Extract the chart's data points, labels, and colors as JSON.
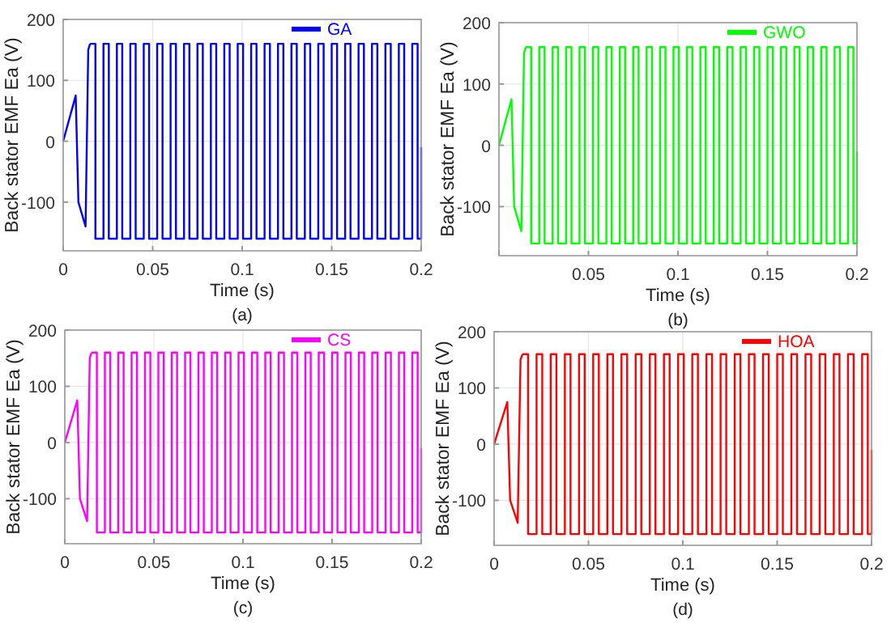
{
  "chart_data": [
    {
      "type": "line",
      "xlabel": "Time (s)",
      "ylabel": "Back stator EMF Ea (V)",
      "annotations": [
        "(a)"
      ],
      "xlim": [
        0,
        0.2
      ],
      "xticks": [
        0,
        0.05,
        0.1,
        0.15,
        0.2
      ],
      "ylim": [
        -180,
        200
      ],
      "yticks": [
        -100,
        0,
        100,
        200
      ],
      "grid": true,
      "legend": "top right",
      "series": [
        {
          "color": "#0000ff",
          "x": [
            0,
            0.007,
            0.0085,
            0.0125,
            0.014,
            0.015
          ],
          "values": [
            0,
            75,
            -100,
            -140,
            150,
            160
          ]
        },
        {
          "type": "step",
          "name": "GA",
          "color": "#0000ff",
          "x": [
            0.015,
            0.018,
            0.0225,
            0.0255,
            0.03,
            0.033,
            0.0375,
            0.0405,
            0.045,
            0.048,
            0.0525,
            0.0555,
            0.06,
            0.063,
            0.0675,
            0.0705,
            0.075,
            0.078,
            0.0825,
            0.0855,
            0.09,
            0.093,
            0.0975,
            0.1005,
            0.105,
            0.108,
            0.1125,
            0.1155,
            0.12,
            0.123,
            0.1275,
            0.1305,
            0.135,
            0.138,
            0.1425,
            0.1455,
            0.15,
            0.153,
            0.1575,
            0.1605,
            0.165,
            0.168,
            0.1725,
            0.1755,
            0.18,
            0.183,
            0.1875,
            0.1905,
            0.195,
            0.198,
            0.2
          ],
          "values": [
            160,
            -160,
            160,
            -160,
            160,
            -160,
            160,
            -160,
            160,
            -160,
            160,
            -160,
            160,
            -160,
            160,
            -160,
            160,
            -160,
            160,
            -160,
            160,
            -160,
            160,
            -160,
            160,
            -160,
            160,
            -160,
            160,
            -160,
            160,
            -160,
            160,
            -160,
            160,
            -160,
            160,
            -160,
            160,
            -160,
            160,
            -160,
            160,
            -160,
            160,
            -160,
            160,
            -160,
            160,
            -160,
            -10
          ]
        }
      ]
    },
    {
      "type": "line",
      "xlabel": "Time (s)",
      "ylabel": "Back stator EMF Ea (V)",
      "annotations": [
        "(b)"
      ],
      "xlim": [
        0,
        0.2
      ],
      "xticks": [
        {
          "value": 0,
          "label": null
        },
        0.05,
        0.1,
        0.15,
        0.2
      ],
      "ylim": [
        -180,
        200
      ],
      "yticks": [
        -100,
        0,
        100,
        200
      ],
      "grid": true,
      "legend": "top right",
      "series": [
        {
          "color": "#00ff00",
          "x": [
            0,
            0.007,
            0.0085,
            0.0125,
            0.014,
            0.015
          ],
          "values": [
            0,
            75,
            -100,
            -140,
            150,
            160
          ]
        },
        {
          "type": "step",
          "name": "GWO",
          "color": "#00ff00",
          "x": [
            0.015,
            0.018,
            0.0225,
            0.0255,
            0.03,
            0.033,
            0.0375,
            0.0405,
            0.045,
            0.048,
            0.0525,
            0.0555,
            0.06,
            0.063,
            0.0675,
            0.0705,
            0.075,
            0.078,
            0.0825,
            0.0855,
            0.09,
            0.093,
            0.0975,
            0.1005,
            0.105,
            0.108,
            0.1125,
            0.1155,
            0.12,
            0.123,
            0.1275,
            0.1305,
            0.135,
            0.138,
            0.1425,
            0.1455,
            0.15,
            0.153,
            0.1575,
            0.1605,
            0.165,
            0.168,
            0.1725,
            0.1755,
            0.18,
            0.183,
            0.1875,
            0.1905,
            0.195,
            0.198,
            0.2
          ],
          "values": [
            160,
            -160,
            160,
            -160,
            160,
            -160,
            160,
            -160,
            160,
            -160,
            160,
            -160,
            160,
            -160,
            160,
            -160,
            160,
            -160,
            160,
            -160,
            160,
            -160,
            160,
            -160,
            160,
            -160,
            160,
            -160,
            160,
            -160,
            160,
            -160,
            160,
            -160,
            160,
            -160,
            160,
            -160,
            160,
            -160,
            160,
            -160,
            160,
            -160,
            160,
            -160,
            160,
            -160,
            160,
            -160,
            -10
          ]
        }
      ]
    },
    {
      "type": "line",
      "xlabel": "Time (s)",
      "ylabel": "Back stator EMF Ea (V)",
      "annotations": [
        "(c)"
      ],
      "xlim": [
        0,
        0.2
      ],
      "xticks": [
        0,
        0.05,
        0.1,
        0.15,
        0.2
      ],
      "ylim": [
        -180,
        200
      ],
      "yticks": [
        -100,
        0,
        100,
        200
      ],
      "grid": true,
      "legend": "top right",
      "series": [
        {
          "color": "#ff00ff",
          "x": [
            0,
            0.007,
            0.0085,
            0.0125,
            0.014,
            0.015
          ],
          "values": [
            0,
            75,
            -100,
            -140,
            150,
            160
          ]
        },
        {
          "type": "step",
          "name": "CS",
          "color": "#ff00ff",
          "x": [
            0.015,
            0.018,
            0.0225,
            0.0255,
            0.03,
            0.033,
            0.0375,
            0.0405,
            0.045,
            0.048,
            0.0525,
            0.0555,
            0.06,
            0.063,
            0.0675,
            0.0705,
            0.075,
            0.078,
            0.0825,
            0.0855,
            0.09,
            0.093,
            0.0975,
            0.1005,
            0.105,
            0.108,
            0.1125,
            0.1155,
            0.12,
            0.123,
            0.1275,
            0.1305,
            0.135,
            0.138,
            0.1425,
            0.1455,
            0.15,
            0.153,
            0.1575,
            0.1605,
            0.165,
            0.168,
            0.1725,
            0.1755,
            0.18,
            0.183,
            0.1875,
            0.1905,
            0.195,
            0.198,
            0.2
          ],
          "values": [
            160,
            -160,
            160,
            -160,
            160,
            -160,
            160,
            -160,
            160,
            -160,
            160,
            -160,
            160,
            -160,
            160,
            -160,
            160,
            -160,
            160,
            -160,
            160,
            -160,
            160,
            -160,
            160,
            -160,
            160,
            -160,
            160,
            -160,
            160,
            -160,
            160,
            -160,
            160,
            -160,
            160,
            -160,
            160,
            -160,
            160,
            -160,
            160,
            -160,
            160,
            -160,
            160,
            -160,
            160,
            -160,
            -10
          ]
        }
      ]
    },
    {
      "type": "line",
      "xlabel": "Time (s)",
      "ylabel": "Back stator EMF Ea (V)",
      "annotations": [
        "(d)"
      ],
      "xlim": [
        0,
        0.2
      ],
      "xticks": [
        0,
        0.05,
        0.1,
        0.15,
        0.2
      ],
      "ylim": [
        -180,
        200
      ],
      "yticks": [
        -100,
        0,
        100,
        200
      ],
      "grid": true,
      "legend": "top right",
      "series": [
        {
          "color": "#ff0000",
          "x": [
            0,
            0.007,
            0.0085,
            0.0125,
            0.014,
            0.015
          ],
          "values": [
            0,
            75,
            -100,
            -140,
            150,
            160
          ]
        },
        {
          "type": "step",
          "name": "HOA",
          "color": "#ff0000",
          "x": [
            0.015,
            0.018,
            0.0225,
            0.0255,
            0.03,
            0.033,
            0.0375,
            0.0405,
            0.045,
            0.048,
            0.0525,
            0.0555,
            0.06,
            0.063,
            0.0675,
            0.0705,
            0.075,
            0.078,
            0.0825,
            0.0855,
            0.09,
            0.093,
            0.0975,
            0.1005,
            0.105,
            0.108,
            0.1125,
            0.1155,
            0.12,
            0.123,
            0.1275,
            0.1305,
            0.135,
            0.138,
            0.1425,
            0.1455,
            0.15,
            0.153,
            0.1575,
            0.1605,
            0.165,
            0.168,
            0.1725,
            0.1755,
            0.18,
            0.183,
            0.1875,
            0.1905,
            0.195,
            0.198,
            0.2
          ],
          "values": [
            160,
            -160,
            160,
            -160,
            160,
            -160,
            160,
            -160,
            160,
            -160,
            160,
            -160,
            160,
            -160,
            160,
            -160,
            160,
            -160,
            160,
            -160,
            160,
            -160,
            160,
            -160,
            160,
            -160,
            160,
            -160,
            160,
            -160,
            160,
            -160,
            160,
            -160,
            160,
            -160,
            160,
            -160,
            160,
            -160,
            160,
            -160,
            160,
            -160,
            160,
            -160,
            160,
            -160,
            160,
            -160,
            -10
          ]
        }
      ]
    }
  ]
}
